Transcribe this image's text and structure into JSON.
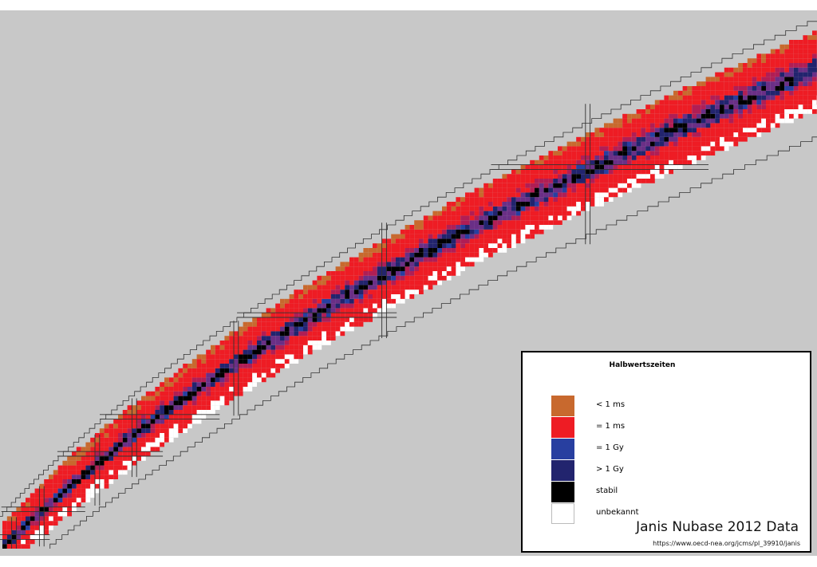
{
  "chart_data": {
    "type": "heatmap",
    "title": "",
    "xlabel": "",
    "ylabel": "",
    "legend": {
      "title": "Halbwertszeiten",
      "placement": "bottom-right",
      "entries": [
        {
          "label": "< 1 ms",
          "color": "#c8692e"
        },
        {
          "label": "= 1 ms",
          "color": "#ee1c24"
        },
        {
          "label": "= 1 Gy",
          "color": "#283fa0"
        },
        {
          "label": "> 1 Gy",
          "color": "#22246e"
        },
        {
          "label": "stabil",
          "color": "#000000"
        },
        {
          "label": "unbekannt",
          "color": "#ffffff"
        }
      ]
    },
    "source": {
      "title": "Janis Nubase 2012 Data",
      "url": "https://www.oecd-nea.org/jcms/pl_39910/janis"
    },
    "magic_numbers": [
      2,
      8,
      20,
      28,
      50,
      82,
      126
    ],
    "colors": {
      "background": "#c8c8c8",
      "border": "#000000",
      "magic_lines": "#333333",
      "drip_lines": "#333333"
    }
  }
}
